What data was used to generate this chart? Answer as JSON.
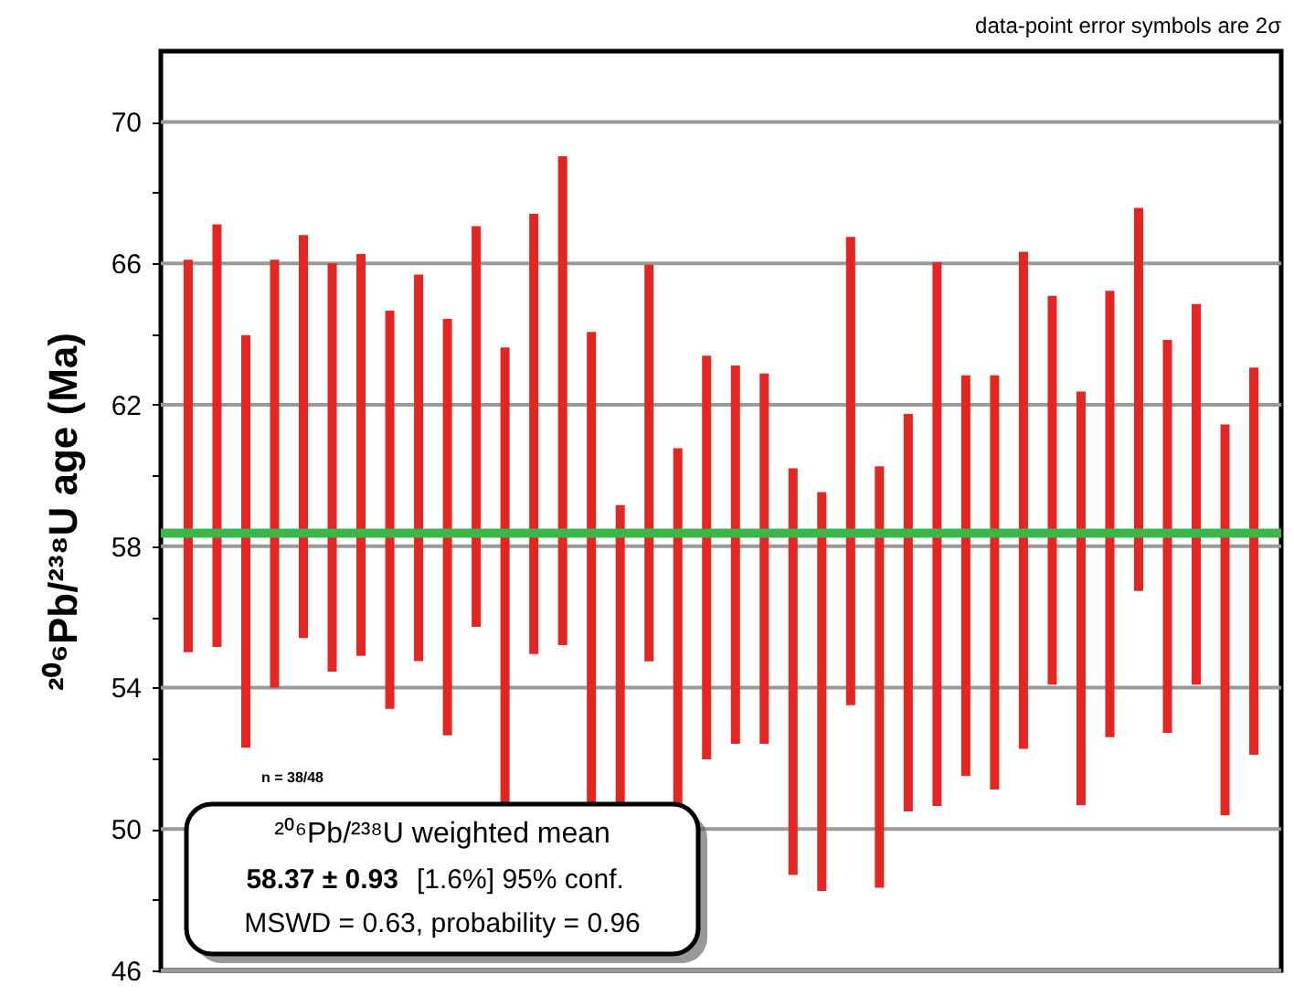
{
  "chart_data": {
    "type": "bar",
    "ylabel": "²⁰⁶Pb/²³⁸U age (Ma)",
    "categories": [
      null,
      null,
      null,
      null,
      null,
      null,
      null,
      null,
      null,
      null,
      null,
      null,
      null,
      null,
      null,
      null,
      null,
      null,
      null,
      null,
      null,
      null,
      null,
      null,
      null,
      null,
      null,
      null,
      null,
      null,
      null,
      null,
      null,
      null,
      null,
      null,
      null,
      null
    ],
    "series": [
      {
        "color": "#e52521",
        "base": [
          55.0,
          55.15,
          52.3,
          54.0,
          55.4,
          54.45,
          54.9,
          53.4,
          54.75,
          52.65,
          55.72,
          49.5,
          54.95,
          55.2,
          49.5,
          48.5,
          54.74,
          48.5,
          51.97,
          52.41,
          52.41,
          48.7,
          48.25,
          53.5,
          48.34,
          50.5,
          50.65,
          51.5,
          51.12,
          52.27,
          54.08,
          50.67,
          52.6,
          56.73,
          52.72,
          54.08,
          50.39,
          52.1
        ],
        "values": [
          11.1,
          11.95,
          11.67,
          12.1,
          11.4,
          11.55,
          11.36,
          11.26,
          10.93,
          11.78,
          11.33,
          14.12,
          12.45,
          13.83,
          14.56,
          10.66,
          11.22,
          12.27,
          11.42,
          10.7,
          10.47,
          11.5,
          11.28,
          13.25,
          11.92,
          11.24,
          15.38,
          11.33,
          11.71,
          14.06,
          11.0,
          11.7,
          12.62,
          10.84,
          11.11,
          10.77,
          11.05,
          10.95
        ]
      }
    ],
    "ylim": [
      46,
      72
    ],
    "yticks": [
      46,
      {
        "value": 48,
        "label": null
      },
      50,
      {
        "value": 52,
        "label": null
      },
      54,
      {
        "value": 56,
        "label": null
      },
      58,
      {
        "value": 60,
        "label": null
      },
      62,
      {
        "value": 64,
        "label": null
      },
      66,
      {
        "value": 68,
        "label": null
      },
      70
    ],
    "grid": "y",
    "tick_labels": "y",
    "ref_lines": [
      {
        "axis": "y",
        "value": 58.37,
        "color": "#3cb54a"
      }
    ],
    "annotations": [
      "data-point error symbols are 2σ",
      "n = 38/48",
      "²⁰⁶Pb/²³⁸U weighted mean",
      "58.37 ± 0.93",
      "[1.6%]  95% conf.",
      "MSWD = 0.63, probability = 0.96"
    ]
  }
}
